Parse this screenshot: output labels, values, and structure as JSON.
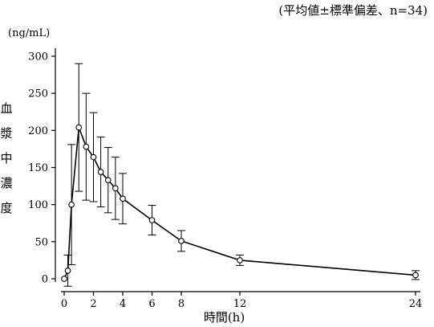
{
  "note": "(平均値±標準偏差、n=34)",
  "chart_data": {
    "type": "line",
    "title": "",
    "xlabel": "時間(h)",
    "ylabel": "血漿中濃度",
    "y_unit": "(ng/mL)",
    "note": "(平均値±標準偏差、n=34)",
    "xlim": [
      0,
      24
    ],
    "ylim": [
      0,
      300
    ],
    "x_ticks": [
      0,
      2,
      4,
      6,
      8,
      12,
      24
    ],
    "y_ticks": [
      0,
      50,
      100,
      150,
      200,
      250,
      300
    ],
    "grid": false,
    "legend": "none",
    "series": [
      {
        "x": [
          0,
          0.25,
          0.5,
          1,
          1.5,
          2,
          2.5,
          3,
          3.5,
          4,
          6,
          8,
          12,
          24
        ],
        "mean": [
          0,
          11,
          100,
          204,
          178,
          164,
          144,
          133,
          122,
          108,
          79,
          51,
          25,
          5
        ],
        "sd": [
          0,
          21,
          81,
          86,
          72,
          60,
          47,
          44,
          42,
          34,
          20,
          14,
          7,
          6
        ]
      }
    ]
  }
}
